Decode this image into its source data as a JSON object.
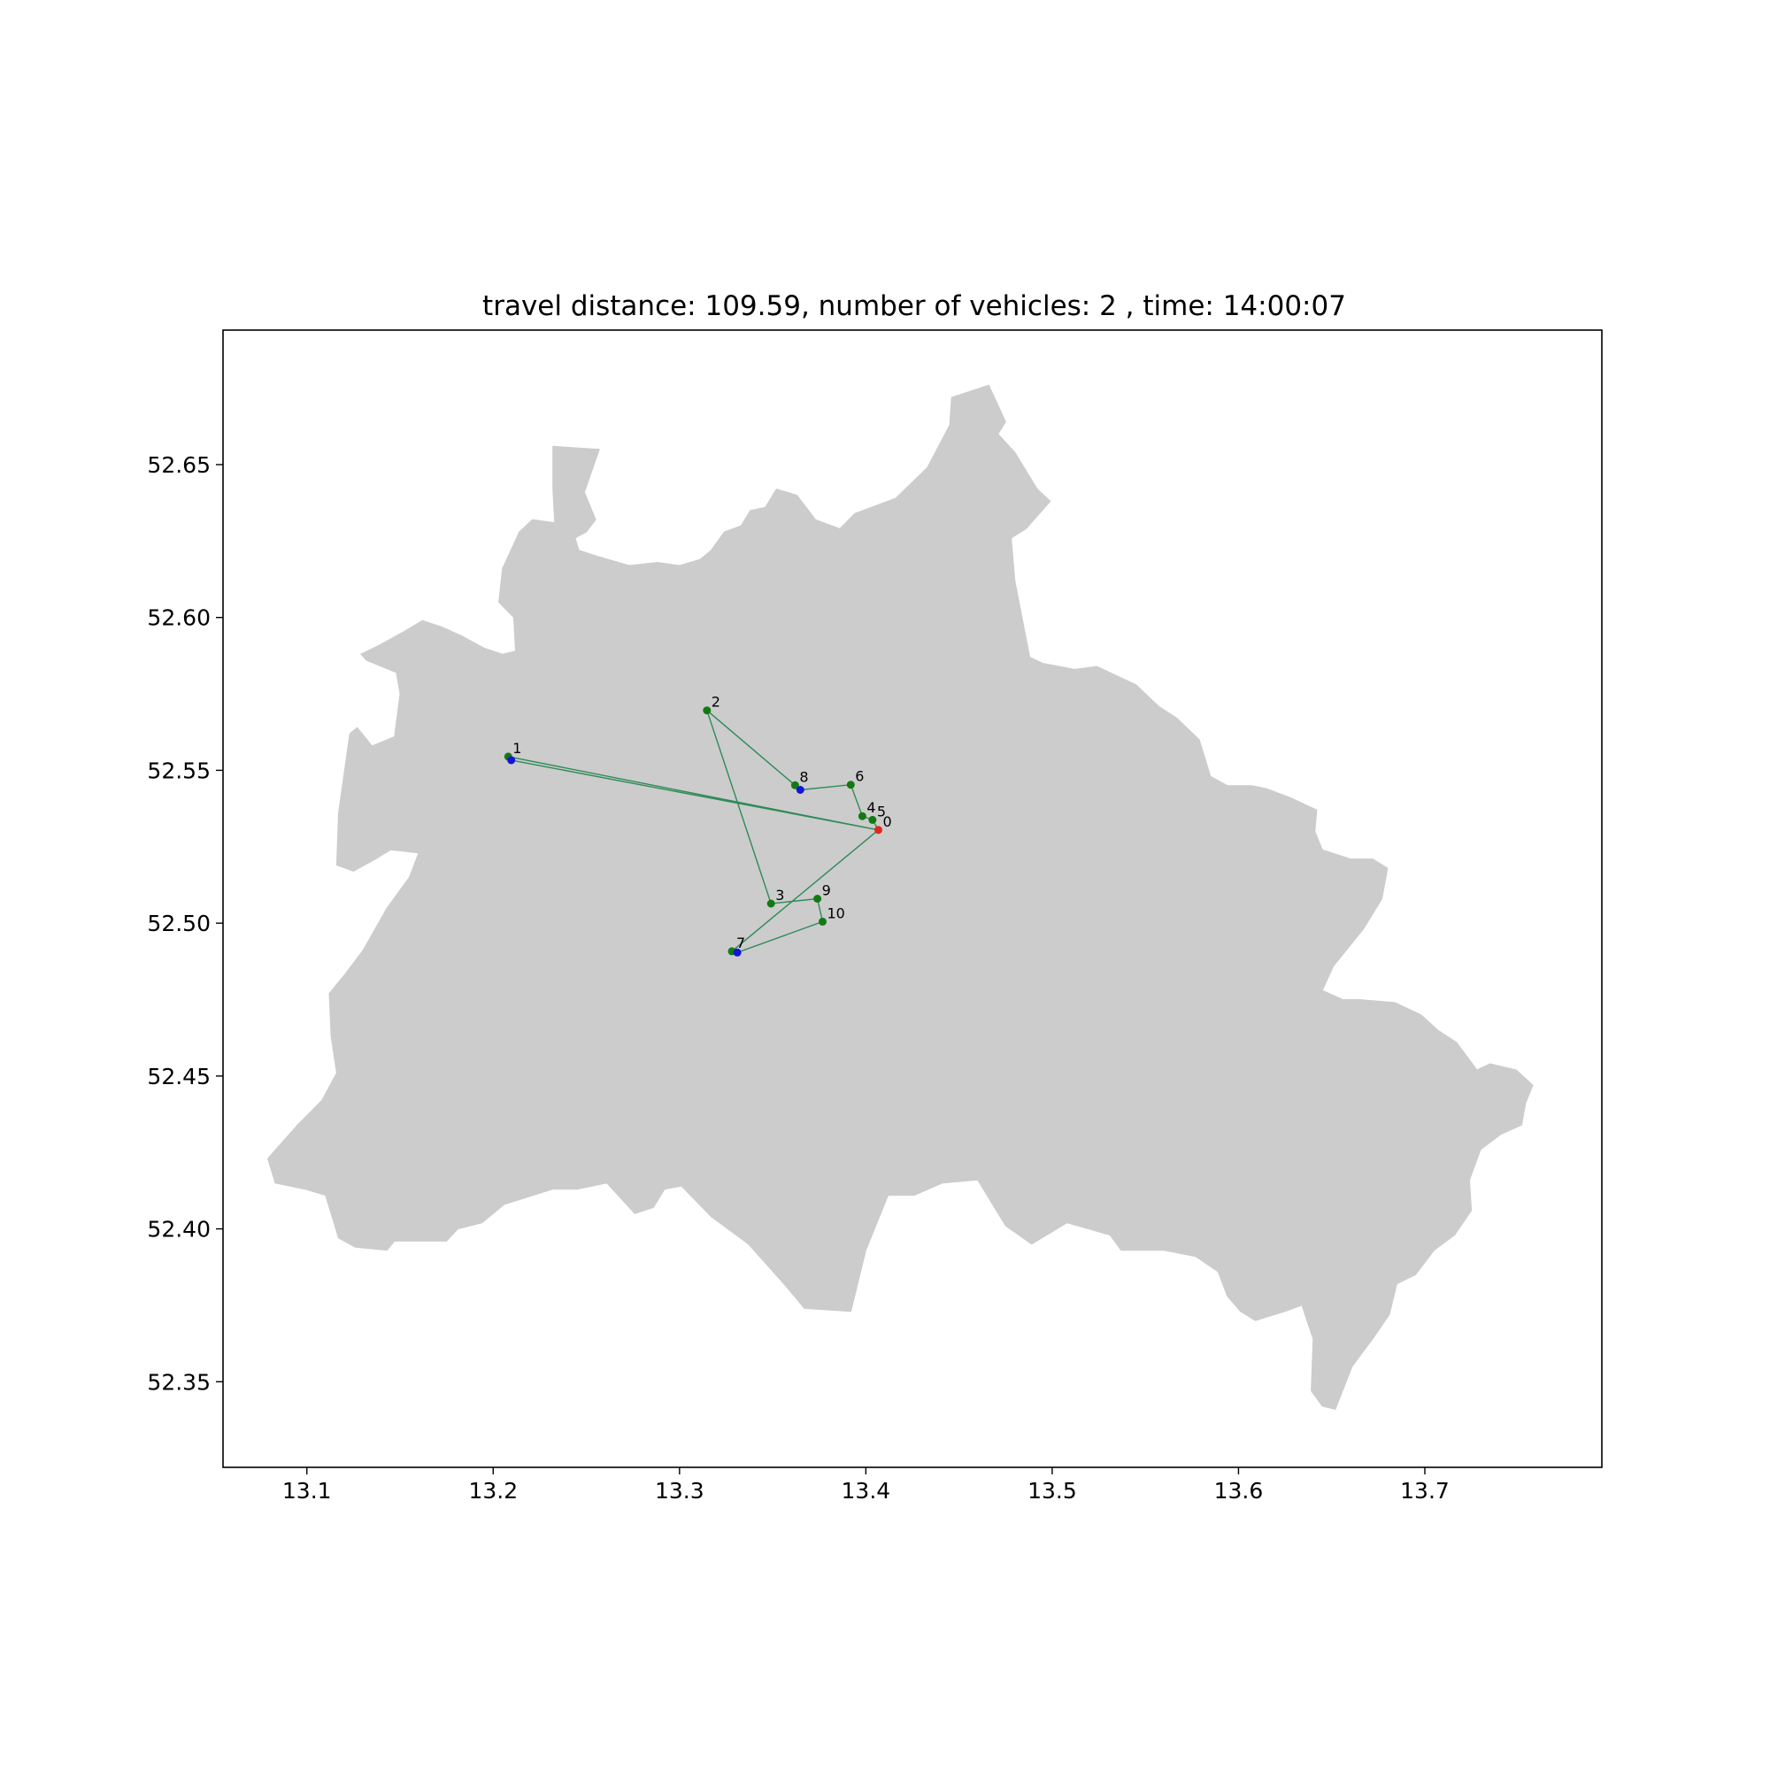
{
  "title": "travel distance: 109.59, number of vehicles: 2 , time: 14:00:07",
  "colors": {
    "region_fill": "#cccccc",
    "route": "#2e8b57",
    "node": "#137a13",
    "depot": "#e0281e",
    "pickup": "#1414d8",
    "frame": "#000000"
  },
  "chart_data": {
    "type": "scatter",
    "title": "travel distance: 109.59, number of vehicles: 2 , time: 14:00:07",
    "xlabel": "",
    "ylabel": "",
    "xlim": [
      13.055,
      13.795
    ],
    "ylim": [
      52.322,
      52.694
    ],
    "x_ticks": [
      13.1,
      13.2,
      13.3,
      13.4,
      13.5,
      13.6,
      13.7
    ],
    "x_tick_labels": [
      "13.1",
      "13.2",
      "13.3",
      "13.4",
      "13.5",
      "13.6",
      "13.7"
    ],
    "y_ticks": [
      52.35,
      52.4,
      52.45,
      52.5,
      52.55,
      52.6,
      52.65
    ],
    "y_tick_labels": [
      "52.35",
      "52.40",
      "52.45",
      "52.50",
      "52.55",
      "52.60",
      "52.65"
    ],
    "grid": false,
    "region_outline": [
      [
        13.232,
        52.656
      ],
      [
        13.257,
        52.655
      ],
      [
        13.249,
        52.641
      ],
      [
        13.255,
        52.632
      ],
      [
        13.25,
        52.628
      ],
      [
        13.244,
        52.626
      ],
      [
        13.246,
        52.622
      ],
      [
        13.256,
        52.62
      ],
      [
        13.273,
        52.617
      ],
      [
        13.288,
        52.618
      ],
      [
        13.3,
        52.617
      ],
      [
        13.311,
        52.619
      ],
      [
        13.317,
        52.622
      ],
      [
        13.324,
        52.628
      ],
      [
        13.333,
        52.63
      ],
      [
        13.338,
        52.635
      ],
      [
        13.346,
        52.636
      ],
      [
        13.352,
        52.642
      ],
      [
        13.363,
        52.64
      ],
      [
        13.373,
        52.632
      ],
      [
        13.386,
        52.629
      ],
      [
        13.394,
        52.634
      ],
      [
        13.416,
        52.639
      ],
      [
        13.433,
        52.649
      ],
      [
        13.445,
        52.663
      ],
      [
        13.446,
        52.672
      ],
      [
        13.466,
        52.676
      ],
      [
        13.475,
        52.664
      ],
      [
        13.471,
        52.66
      ],
      [
        13.48,
        52.654
      ],
      [
        13.492,
        52.642
      ],
      [
        13.499,
        52.638
      ],
      [
        13.486,
        52.629
      ],
      [
        13.478,
        52.626
      ],
      [
        13.48,
        52.612
      ],
      [
        13.488,
        52.587
      ],
      [
        13.495,
        52.585
      ],
      [
        13.512,
        52.583
      ],
      [
        13.524,
        52.584
      ],
      [
        13.545,
        52.578
      ],
      [
        13.557,
        52.571
      ],
      [
        13.567,
        52.567
      ],
      [
        13.579,
        52.56
      ],
      [
        13.585,
        52.548
      ],
      [
        13.594,
        52.545
      ],
      [
        13.607,
        52.545
      ],
      [
        13.615,
        52.544
      ],
      [
        13.628,
        52.541
      ],
      [
        13.642,
        52.537
      ],
      [
        13.641,
        52.53
      ],
      [
        13.645,
        52.524
      ],
      [
        13.66,
        52.521
      ],
      [
        13.672,
        52.521
      ],
      [
        13.68,
        52.518
      ],
      [
        13.677,
        52.508
      ],
      [
        13.667,
        52.498
      ],
      [
        13.651,
        52.486
      ],
      [
        13.645,
        52.478
      ],
      [
        13.656,
        52.475
      ],
      [
        13.665,
        52.475
      ],
      [
        13.684,
        52.474
      ],
      [
        13.698,
        52.47
      ],
      [
        13.707,
        52.465
      ],
      [
        13.717,
        52.461
      ],
      [
        13.728,
        52.452
      ],
      [
        13.735,
        52.454
      ],
      [
        13.749,
        52.452
      ],
      [
        13.758,
        52.447
      ],
      [
        13.754,
        52.441
      ],
      [
        13.752,
        52.434
      ],
      [
        13.741,
        52.431
      ],
      [
        13.73,
        52.426
      ],
      [
        13.724,
        52.416
      ],
      [
        13.725,
        52.406
      ],
      [
        13.716,
        52.398
      ],
      [
        13.705,
        52.393
      ],
      [
        13.695,
        52.385
      ],
      [
        13.685,
        52.382
      ],
      [
        13.681,
        52.372
      ],
      [
        13.672,
        52.364
      ],
      [
        13.661,
        52.355
      ],
      [
        13.652,
        52.341
      ],
      [
        13.645,
        52.342
      ],
      [
        13.639,
        52.347
      ],
      [
        13.64,
        52.364
      ],
      [
        13.634,
        52.375
      ],
      [
        13.625,
        52.373
      ],
      [
        13.609,
        52.37
      ],
      [
        13.601,
        52.373
      ],
      [
        13.594,
        52.378
      ],
      [
        13.589,
        52.386
      ],
      [
        13.577,
        52.391
      ],
      [
        13.56,
        52.393
      ],
      [
        13.537,
        52.393
      ],
      [
        13.531,
        52.398
      ],
      [
        13.508,
        52.402
      ],
      [
        13.489,
        52.395
      ],
      [
        13.475,
        52.401
      ],
      [
        13.46,
        52.416
      ],
      [
        13.441,
        52.415
      ],
      [
        13.426,
        52.411
      ],
      [
        13.412,
        52.411
      ],
      [
        13.4,
        52.393
      ],
      [
        13.392,
        52.373
      ],
      [
        13.367,
        52.374
      ],
      [
        13.356,
        52.382
      ],
      [
        13.337,
        52.395
      ],
      [
        13.317,
        52.404
      ],
      [
        13.301,
        52.414
      ],
      [
        13.292,
        52.413
      ],
      [
        13.286,
        52.407
      ],
      [
        13.276,
        52.405
      ],
      [
        13.261,
        52.415
      ],
      [
        13.245,
        52.413
      ],
      [
        13.232,
        52.413
      ],
      [
        13.206,
        52.408
      ],
      [
        13.194,
        52.402
      ],
      [
        13.181,
        52.4
      ],
      [
        13.175,
        52.396
      ],
      [
        13.147,
        52.396
      ],
      [
        13.143,
        52.393
      ],
      [
        13.126,
        52.394
      ],
      [
        13.117,
        52.397
      ],
      [
        13.11,
        52.411
      ],
      [
        13.099,
        52.413
      ],
      [
        13.083,
        52.415
      ],
      [
        13.079,
        52.423
      ],
      [
        13.095,
        52.434
      ],
      [
        13.108,
        52.442
      ],
      [
        13.116,
        52.451
      ],
      [
        13.113,
        52.463
      ],
      [
        13.112,
        52.477
      ],
      [
        13.12,
        52.483
      ],
      [
        13.13,
        52.491
      ],
      [
        13.143,
        52.505
      ],
      [
        13.155,
        52.515
      ],
      [
        13.16,
        52.523
      ],
      [
        13.145,
        52.524
      ],
      [
        13.137,
        52.521
      ],
      [
        13.125,
        52.517
      ],
      [
        13.116,
        52.519
      ],
      [
        13.117,
        52.536
      ],
      [
        13.123,
        52.562
      ],
      [
        13.127,
        52.564
      ],
      [
        13.135,
        52.558
      ],
      [
        13.147,
        52.561
      ],
      [
        13.15,
        52.575
      ],
      [
        13.148,
        52.582
      ],
      [
        13.14,
        52.584
      ],
      [
        13.132,
        52.586
      ],
      [
        13.129,
        52.588
      ],
      [
        13.139,
        52.591
      ],
      [
        13.151,
        52.595
      ],
      [
        13.162,
        52.599
      ],
      [
        13.172,
        52.597
      ],
      [
        13.183,
        52.594
      ],
      [
        13.195,
        52.59
      ],
      [
        13.205,
        52.588
      ],
      [
        13.212,
        52.589
      ],
      [
        13.211,
        52.6
      ],
      [
        13.203,
        52.605
      ],
      [
        13.205,
        52.616
      ],
      [
        13.214,
        52.628
      ],
      [
        13.221,
        52.632
      ],
      [
        13.233,
        52.631
      ],
      [
        13.232,
        52.642
      ]
    ],
    "nodes": [
      {
        "id": "0",
        "x": 13.4067,
        "y": 52.5305,
        "role": "depot"
      },
      {
        "id": "1",
        "x": 13.2081,
        "y": 52.5545,
        "role": "delivery"
      },
      {
        "id": "2",
        "x": 13.3147,
        "y": 52.5696,
        "role": "delivery"
      },
      {
        "id": "3",
        "x": 13.3491,
        "y": 52.5064,
        "role": "delivery"
      },
      {
        "id": "4",
        "x": 13.3981,
        "y": 52.535,
        "role": "delivery"
      },
      {
        "id": "5",
        "x": 13.4036,
        "y": 52.5338,
        "role": "delivery"
      },
      {
        "id": "6",
        "x": 13.3919,
        "y": 52.5453,
        "role": "delivery"
      },
      {
        "id": "7",
        "x": 13.3281,
        "y": 52.4908,
        "role": "delivery"
      },
      {
        "id": "8",
        "x": 13.362,
        "y": 52.5451,
        "role": "delivery"
      },
      {
        "id": "9",
        "x": 13.374,
        "y": 52.508,
        "role": "delivery"
      },
      {
        "id": "10",
        "x": 13.3768,
        "y": 52.5005,
        "role": "delivery"
      }
    ],
    "pickups": [
      {
        "x": 13.2097,
        "y": 52.5533
      },
      {
        "x": 13.3648,
        "y": 52.5436
      },
      {
        "x": 13.331,
        "y": 52.4904
      }
    ],
    "routes": [
      {
        "points": [
          [
            13.4067,
            52.5305
          ],
          [
            13.2081,
            52.5545
          ],
          [
            13.2097,
            52.5533
          ],
          [
            13.4067,
            52.5305
          ]
        ]
      },
      {
        "points": [
          [
            13.4067,
            52.5305
          ],
          [
            13.4036,
            52.5338
          ],
          [
            13.3981,
            52.535
          ],
          [
            13.3919,
            52.5453
          ],
          [
            13.3648,
            52.5436
          ],
          [
            13.362,
            52.5451
          ],
          [
            13.3147,
            52.5696
          ],
          [
            13.3491,
            52.5064
          ],
          [
            13.374,
            52.508
          ],
          [
            13.3768,
            52.5005
          ],
          [
            13.331,
            52.4904
          ],
          [
            13.3281,
            52.4908
          ],
          [
            13.4067,
            52.5305
          ]
        ]
      }
    ]
  }
}
